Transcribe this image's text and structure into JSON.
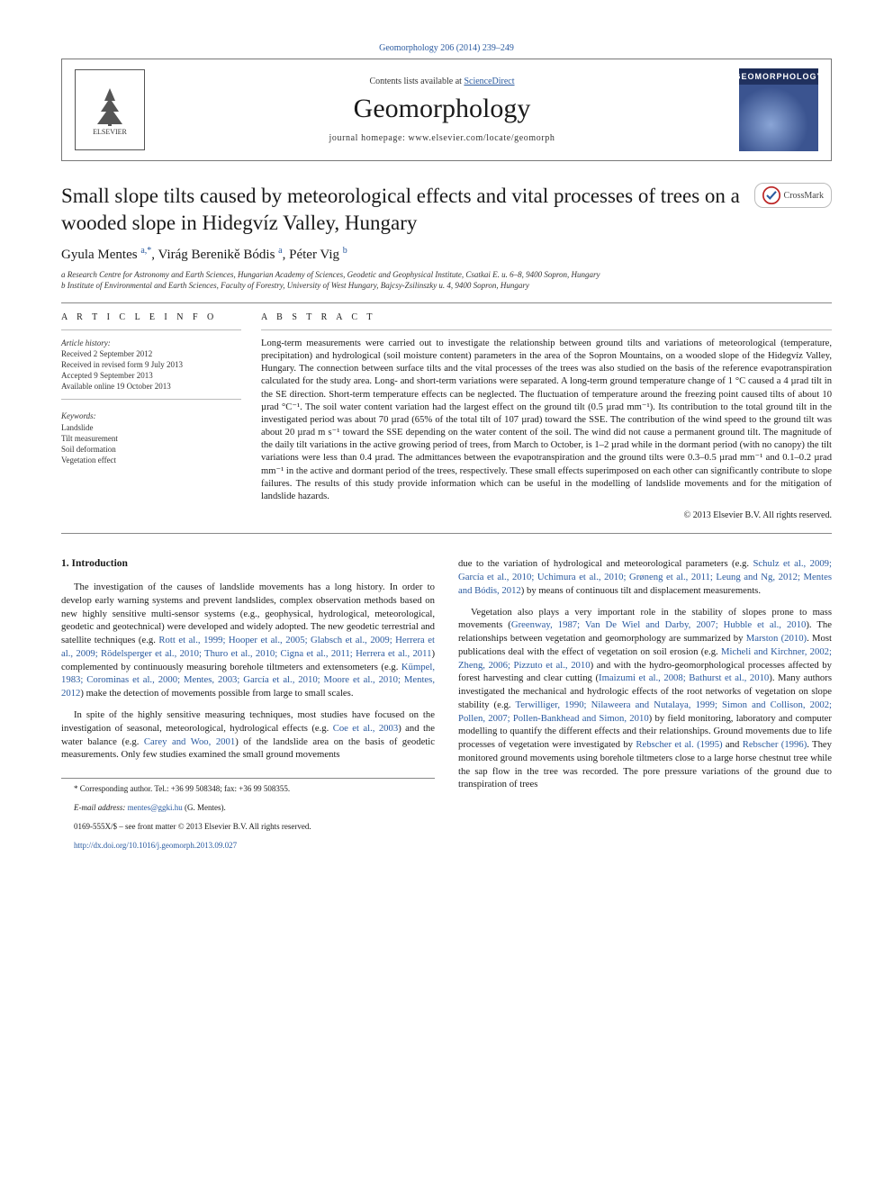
{
  "journal_ref": "Geomorphology 206 (2014) 239–249",
  "header": {
    "lists_prefix": "Contents lists available at ",
    "lists_link": "ScienceDirect",
    "journal_name": "Geomorphology",
    "homepage_prefix": "journal homepage: ",
    "homepage": "www.elsevier.com/locate/geomorph",
    "elsevier_label": "ELSEVIER",
    "cover_label": "GEOMORPHOLOGY"
  },
  "crossmark": "CrossMark",
  "title": "Small slope tilts caused by meteorological effects and vital processes of trees on a wooded slope in Hidegvíz Valley, Hungary",
  "authors_html": "Gyula Mentes <sup>a,*</sup>, Virág Berenikě Bódis <sup>a</sup>, Péter Vig <sup>b</sup>",
  "affiliations": [
    "a Research Centre for Astronomy and Earth Sciences, Hungarian Academy of Sciences, Geodetic and Geophysical Institute, Csatkai E. u. 6–8, 9400 Sopron, Hungary",
    "b Institute of Environmental and Earth Sciences, Faculty of Forestry, University of West Hungary, Bajcsy-Zsilinszky u. 4, 9400 Sopron, Hungary"
  ],
  "info_head": "A R T I C L E   I N F O",
  "history_head": "Article history:",
  "history": [
    "Received 2 September 2012",
    "Received in revised form 9 July 2013",
    "Accepted 9 September 2013",
    "Available online 19 October 2013"
  ],
  "kw_head": "Keywords:",
  "keywords": [
    "Landslide",
    "Tilt measurement",
    "Soil deformation",
    "Vegetation effect"
  ],
  "abstract_head": "A B S T R A C T",
  "abstract": "Long-term measurements were carried out to investigate the relationship between ground tilts and variations of meteorological (temperature, precipitation) and hydrological (soil moisture content) parameters in the area of the Sopron Mountains, on a wooded slope of the Hidegvíz Valley, Hungary. The connection between surface tilts and the vital processes of the trees was also studied on the basis of the reference evapotranspiration calculated for the study area. Long- and short-term variations were separated. A long-term ground temperature change of 1 °C caused a 4 µrad tilt in the SE direction. Short-term temperature effects can be neglected. The fluctuation of temperature around the freezing point caused tilts of about 10 µrad °C⁻¹. The soil water content variation had the largest effect on the ground tilt (0.5 µrad mm⁻¹). Its contribution to the total ground tilt in the investigated period was about 70 µrad (65% of the total tilt of 107 µrad) toward the SSE. The contribution of the wind speed to the ground tilt was about 20 µrad m s⁻¹ toward the SSE depending on the water content of the soil. The wind did not cause a permanent ground tilt. The magnitude of the daily tilt variations in the active growing period of trees, from March to October, is 1–2 µrad while in the dormant period (with no canopy) the tilt variations were less than 0.4 µrad. The admittances between the evapotranspiration and the ground tilts were 0.3–0.5 µrad mm⁻¹ and 0.1–0.2 µrad mm⁻¹ in the active and dormant period of the trees, respectively. These small effects superimposed on each other can significantly contribute to slope failures. The results of this study provide information which can be useful in the modelling of landslide movements and for the mitigation of landslide hazards.",
  "copyright": "© 2013 Elsevier B.V. All rights reserved.",
  "section1_head": "1. Introduction",
  "col1_p1_a": "The investigation of the causes of landslide movements has a long history. In order to develop early warning systems and prevent landslides, complex observation methods based on new highly sensitive multi-sensor systems (e.g., geophysical, hydrological, meteorological, geodetic and geotechnical) were developed and widely adopted. The new geodetic terrestrial and satellite techniques (e.g. ",
  "col1_p1_cite1": "Rott et al., 1999; Hooper et al., 2005; Glabsch et al., 2009; Herrera et al., 2009; Rödelsperger et al., 2010; Thuro et al., 2010; Cigna et al., 2011; Herrera et al., 2011",
  "col1_p1_b": ") complemented by continuously measuring borehole tiltmeters and extensometers (e.g. ",
  "col1_p1_cite2": "Kümpel, 1983; Corominas et al., 2000; Mentes, 2003; García et al., 2010; Moore et al., 2010; Mentes, 2012",
  "col1_p1_c": ") make the detection of movements possible from large to small scales.",
  "col1_p2_a": "In spite of the highly sensitive measuring techniques, most studies have focused on the investigation of seasonal, meteorological, hydrological effects (e.g. ",
  "col1_p2_cite1": "Coe et al., 2003",
  "col1_p2_b": ") and the water balance (e.g. ",
  "col1_p2_cite2": "Carey and Woo, 2001",
  "col1_p2_c": ") of the landslide area on the basis of geodetic measurements. Only few studies examined the small ground movements",
  "col2_p1_a": "due to the variation of hydrological and meteorological parameters (e.g. ",
  "col2_p1_cite1": "Schulz et al., 2009; García et al., 2010; Uchimura et al., 2010; Grøneng et al., 2011; Leung and Ng, 2012; Mentes and Bódis, 2012",
  "col2_p1_b": ") by means of continuous tilt and displacement measurements.",
  "col2_p2_a": "Vegetation also plays a very important role in the stability of slopes prone to mass movements (",
  "col2_p2_cite1": "Greenway, 1987; Van De Wiel and Darby, 2007; Hubble et al., 2010",
  "col2_p2_b": "). The relationships between vegetation and geomorphology are summarized by ",
  "col2_p2_cite2": "Marston (2010)",
  "col2_p2_c": ". Most publications deal with the effect of vegetation on soil erosion (e.g. ",
  "col2_p2_cite3": "Micheli and Kirchner, 2002; Zheng, 2006; Pizzuto et al., 2010",
  "col2_p2_d": ") and with the hydro-geomorphological processes affected by forest harvesting and clear cutting (",
  "col2_p2_cite4": "Imaizumi et al., 2008; Bathurst et al., 2010",
  "col2_p2_e": "). Many authors investigated the mechanical and hydrologic effects of the root networks of vegetation on slope stability (e.g. ",
  "col2_p2_cite5": "Terwilliger, 1990; Nilaweera and Nutalaya, 1999; Simon and Collison, 2002; Pollen, 2007; Pollen-Bankhead and Simon, 2010",
  "col2_p2_f": ") by field monitoring, laboratory and computer modelling to quantify the different effects and their relationships. Ground movements due to life processes of vegetation were investigated by ",
  "col2_p2_cite6": "Rebscher et al. (1995)",
  "col2_p2_g": " and ",
  "col2_p2_cite7": "Rebscher (1996)",
  "col2_p2_h": ". They monitored ground movements using borehole tiltmeters close to a large horse chestnut tree while the sap flow in the tree was recorded. The pore pressure variations of the ground due to transpiration of trees",
  "footer": {
    "corr_label": "* Corresponding author. Tel.: +36 99 508348; fax: +36 99 508355.",
    "email_label": "E-mail address: ",
    "email": "mentes@ggki.hu",
    "email_suffix": " (G. Mentes).",
    "issn_line": "0169-555X/$ – see front matter © 2013 Elsevier B.V. All rights reserved.",
    "doi": "http://dx.doi.org/10.1016/j.geomorph.2013.09.027"
  },
  "colors": {
    "link": "#2a5a9f",
    "text": "#1a1a1a",
    "rule": "#888888"
  }
}
